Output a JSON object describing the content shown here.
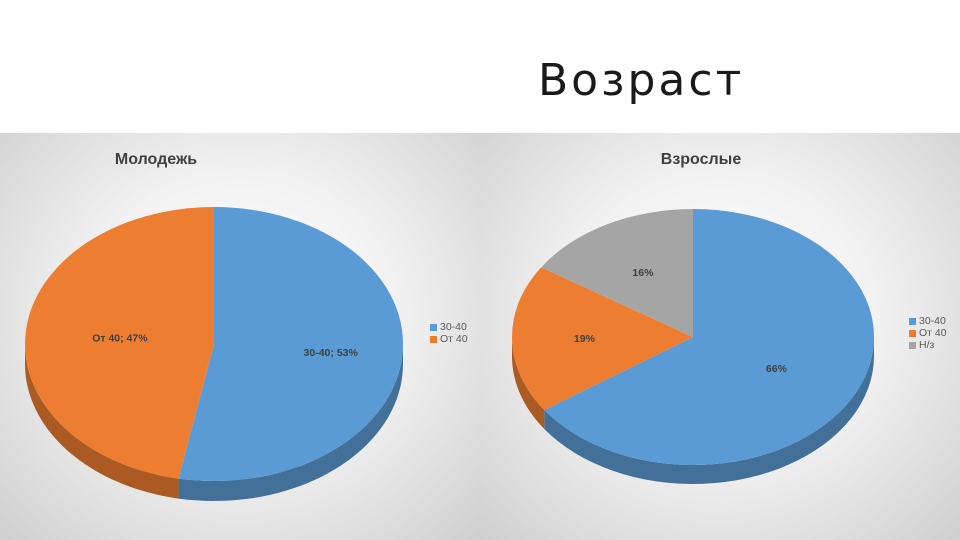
{
  "slide": {
    "title": "Возраст"
  },
  "colors": {
    "blue": "#5b9bd5",
    "orange": "#ed7d31",
    "gray": "#a5a5a5"
  },
  "chart_data": [
    {
      "type": "pie",
      "title": "Молодежь",
      "categories": [
        "30-40",
        "От 40"
      ],
      "values": [
        53,
        47
      ],
      "data_labels": [
        "30-40; 53%",
        "От 40; 47%"
      ],
      "legend": {
        "position": "right",
        "entries": [
          "30-40",
          "От 40"
        ]
      },
      "style": "3d"
    },
    {
      "type": "pie",
      "title": "Взрослые",
      "categories": [
        "30-40",
        "От 40",
        "Н/з"
      ],
      "values": [
        66,
        19,
        16
      ],
      "data_labels": [
        "66%",
        "19%",
        "16%"
      ],
      "legend": {
        "position": "right",
        "entries": [
          "30-40",
          "От 40",
          "Н/з"
        ]
      },
      "style": "3d"
    }
  ]
}
